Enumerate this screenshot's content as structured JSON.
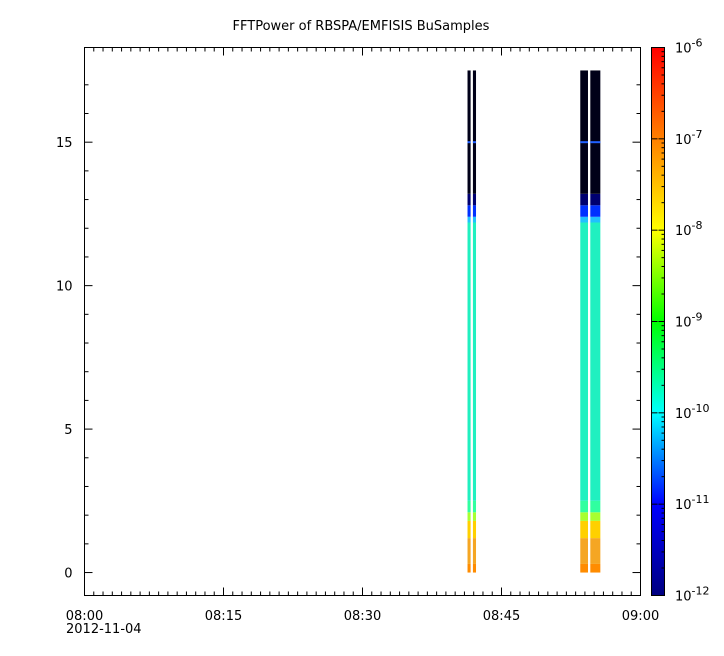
{
  "chart_data": {
    "type": "heatmap",
    "title": "FFTPower of RBSPA/EMFISIS  BuSamples",
    "xlabel": "",
    "ylabel": "",
    "x_tick_labels": [
      "08:00",
      "08:15",
      "08:30",
      "08:45",
      "09:00"
    ],
    "x_date_label": "2012-11-04",
    "x_range": [
      "08:00",
      "09:00"
    ],
    "y_range": [
      -0.8,
      18.3
    ],
    "y_ticks": [
      0,
      5,
      10,
      15
    ],
    "colorbar": {
      "scale": "log",
      "range": [
        1e-12,
        1e-06
      ],
      "tick_labels": [
        {
          "base": "10",
          "exp": "-6"
        },
        {
          "base": "10",
          "exp": "-7"
        },
        {
          "base": "10",
          "exp": "-8"
        },
        {
          "base": "10",
          "exp": "-9"
        },
        {
          "base": "10",
          "exp": "-10"
        },
        {
          "base": "10",
          "exp": "-11"
        },
        {
          "base": "10",
          "exp": "-12"
        }
      ],
      "colormap": [
        "#000080",
        "#0000ff",
        "#00ffff",
        "#00ff00",
        "#ffff00",
        "#ff8000",
        "#ff0000"
      ]
    },
    "bursts": [
      {
        "t_start": "08:41:20",
        "t_end": "08:41:40"
      },
      {
        "t_start": "08:41:55",
        "t_end": "08:42:15"
      },
      {
        "t_start": "08:53:30",
        "t_end": "08:54:20"
      },
      {
        "t_start": "08:54:35",
        "t_end": "08:55:40"
      }
    ],
    "spectrum_profile": [
      {
        "y_from": 0.0,
        "y_to": 0.3,
        "color": "#ff8c00"
      },
      {
        "y_from": 0.3,
        "y_to": 1.2,
        "color": "#f5a623"
      },
      {
        "y_from": 1.2,
        "y_to": 1.8,
        "color": "#ffd000"
      },
      {
        "y_from": 1.8,
        "y_to": 2.1,
        "color": "#a8ff30"
      },
      {
        "y_from": 2.1,
        "y_to": 2.5,
        "color": "#30ffa0"
      },
      {
        "y_from": 2.5,
        "y_to": 12.2,
        "color": "#20f0c0"
      },
      {
        "y_from": 12.2,
        "y_to": 12.4,
        "color": "#20c0ff"
      },
      {
        "y_from": 12.4,
        "y_to": 12.8,
        "color": "#0030ff"
      },
      {
        "y_from": 12.8,
        "y_to": 13.2,
        "color": "#000070"
      },
      {
        "y_from": 13.2,
        "y_to": 17.5,
        "color": "#000018"
      }
    ],
    "line_at_y": 15.0,
    "line_color": "#2060ff"
  }
}
